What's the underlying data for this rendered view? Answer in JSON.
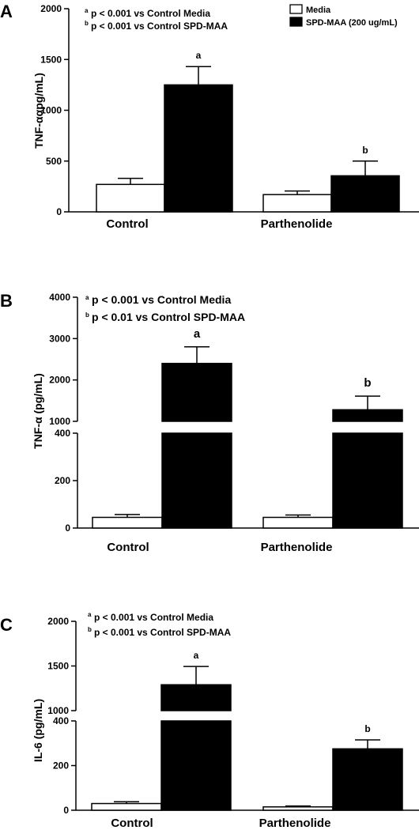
{
  "chart_data": [
    {
      "type": "bar",
      "panel_label": "A",
      "ylabel": "TNF-ααpg/mL)",
      "categories": [
        "Control",
        "Parthenolide"
      ],
      "ylim": [
        0,
        2000
      ],
      "yticks": [
        "0",
        "500",
        "1000",
        "1500",
        "2000"
      ],
      "series": [
        {
          "name": "Media",
          "color": "#ffffff",
          "values": [
            270,
            170
          ],
          "errors": [
            60,
            35
          ]
        },
        {
          "name": "SPD-MAA (200 ug/mL)",
          "color": "#000000",
          "values": [
            1250,
            355
          ],
          "errors": [
            180,
            145
          ]
        }
      ],
      "sig_labels": [
        {
          "category": 0,
          "series": 1,
          "text": "a"
        },
        {
          "category": 1,
          "series": 1,
          "text": "b"
        }
      ],
      "notes": [
        {
          "sup": "a",
          "text": "p < 0.001 vs Control Media"
        },
        {
          "sup": "b",
          "text": "p < 0.001 vs Control SPD-MAA"
        }
      ],
      "legend": {
        "position": "top-right",
        "entries": [
          "Media",
          "SPD-MAA (200 ug/mL)"
        ]
      }
    },
    {
      "type": "bar",
      "panel_label": "B",
      "ylabel": "TNF-α (pg/mL)",
      "categories": [
        "Control",
        "Parthenolide"
      ],
      "broken_axis": {
        "lower": [
          0,
          400
        ],
        "upper": [
          1000,
          4000
        ]
      },
      "yticks_lower": [
        "0",
        "200",
        "400"
      ],
      "yticks_upper": [
        "1000",
        "2000",
        "3000",
        "4000"
      ],
      "series": [
        {
          "name": "Media",
          "color": "#ffffff",
          "values": [
            45,
            45
          ],
          "errors": [
            12,
            10
          ]
        },
        {
          "name": "SPD-MAA",
          "color": "#000000",
          "values": [
            2400,
            1280
          ],
          "errors": [
            400,
            330
          ]
        }
      ],
      "sig_labels": [
        {
          "category": 0,
          "series": 1,
          "text": "a"
        },
        {
          "category": 1,
          "series": 1,
          "text": "b"
        }
      ],
      "notes": [
        {
          "sup": "a",
          "text": "p < 0.001 vs Control Media"
        },
        {
          "sup": "b",
          "text": "p < 0.01  vs  Control SPD-MAA"
        }
      ]
    },
    {
      "type": "bar",
      "panel_label": "C",
      "ylabel": "IL-6 (pg/mL)",
      "categories": [
        "Control",
        "Parthenolide"
      ],
      "broken_axis": {
        "lower": [
          0,
          400
        ],
        "upper": [
          1000,
          2000
        ]
      },
      "yticks_lower": [
        "0",
        "200",
        "400"
      ],
      "yticks_upper": [
        "1000",
        "1500",
        "2000"
      ],
      "series": [
        {
          "name": "Media",
          "color": "#ffffff",
          "values": [
            30,
            15
          ],
          "errors": [
            8,
            4
          ]
        },
        {
          "name": "SPD-MAA",
          "color": "#000000",
          "values": [
            1290,
            275
          ],
          "errors": [
            205,
            40
          ]
        }
      ],
      "sig_labels": [
        {
          "category": 0,
          "series": 1,
          "text": "a"
        },
        {
          "category": 1,
          "series": 1,
          "text": "b"
        }
      ],
      "notes": [
        {
          "sup": "a",
          "text": "p < 0.001 vs Control Media"
        },
        {
          "sup": "b",
          "text": "p < 0.001 vs  Control SPD-MAA"
        }
      ]
    }
  ]
}
